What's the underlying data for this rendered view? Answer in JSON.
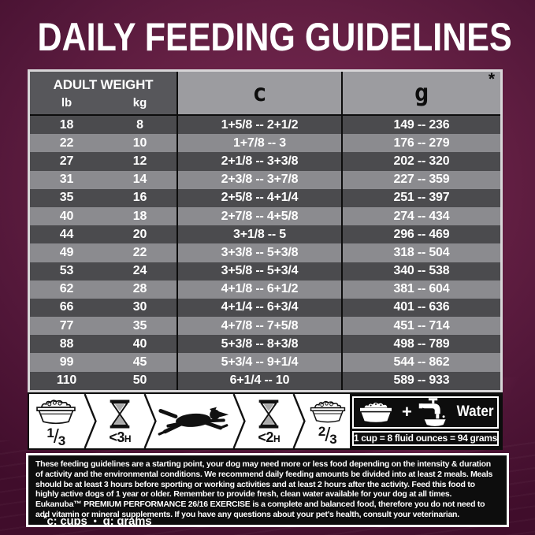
{
  "title": "DAILY FEEDING GUIDELINES",
  "colors": {
    "background": "#5a1a3e",
    "row_dark": "#4b4b4e",
    "row_light": "#8b8b8f",
    "header_dark": "#57575b",
    "header_light": "#9c9ca0",
    "box_background": "#0d0d0d",
    "text_light": "#ffffff"
  },
  "table": {
    "header": {
      "adult_weight": "ADULT WEIGHT",
      "lb": "lb",
      "kg": "kg",
      "cups_abbrev": "c",
      "grams_abbrev": "g",
      "asterisk": "*"
    },
    "rows": [
      {
        "lb": "18",
        "kg": "8",
        "cups": "1+5/8 -- 2+1/2",
        "grams": "149 -- 236"
      },
      {
        "lb": "22",
        "kg": "10",
        "cups": "1+7/8 -- 3",
        "grams": "176 -- 279"
      },
      {
        "lb": "27",
        "kg": "12",
        "cups": "2+1/8 -- 3+3/8",
        "grams": "202 -- 320"
      },
      {
        "lb": "31",
        "kg": "14",
        "cups": "2+3/8 -- 3+7/8",
        "grams": "227 -- 359"
      },
      {
        "lb": "35",
        "kg": "16",
        "cups": "2+5/8 -- 4+1/4",
        "grams": "251 -- 397"
      },
      {
        "lb": "40",
        "kg": "18",
        "cups": "2+7/8 -- 4+5/8",
        "grams": "274 -- 434"
      },
      {
        "lb": "44",
        "kg": "20",
        "cups": "3+1/8 -- 5",
        "grams": "296 -- 469"
      },
      {
        "lb": "49",
        "kg": "22",
        "cups": "3+3/8 -- 5+3/8",
        "grams": "318 -- 504"
      },
      {
        "lb": "53",
        "kg": "24",
        "cups": "3+5/8 -- 5+3/4",
        "grams": "340 -- 538"
      },
      {
        "lb": "62",
        "kg": "28",
        "cups": "4+1/8 -- 6+1/2",
        "grams": "381 -- 604"
      },
      {
        "lb": "66",
        "kg": "30",
        "cups": "4+1/4 -- 6+3/4",
        "grams": "401 -- 636"
      },
      {
        "lb": "77",
        "kg": "35",
        "cups": "4+7/8 -- 7+5/8",
        "grams": "451 -- 714"
      },
      {
        "lb": "88",
        "kg": "40",
        "cups": "5+3/8 -- 8+3/8",
        "grams": "498 -- 789"
      },
      {
        "lb": "99",
        "kg": "45",
        "cups": "5+3/4 -- 9+1/4",
        "grams": "544 -- 862"
      },
      {
        "lb": "110",
        "kg": "50",
        "cups": "6+1/4 -- 10",
        "grams": "589 -- 933"
      }
    ]
  },
  "strip": {
    "icons": [
      "food-bowl-icon",
      "hourglass-icon",
      "running-dog-icon",
      "hourglass-icon",
      "food-bowl-icon"
    ],
    "portion_first": {
      "numerator": "1",
      "denominator": "3"
    },
    "time_before": {
      "value": "<3",
      "unit": "H"
    },
    "time_after": {
      "value": "<2",
      "unit": "H"
    },
    "portion_second": {
      "numerator": "2",
      "denominator": "3"
    }
  },
  "water_box": {
    "icons": [
      "food-bowl-icon",
      "faucet-water-icon"
    ],
    "plus": "+",
    "label": "Water",
    "equivalence": "1 cup = 8 fluid ounces = 94 grams"
  },
  "notes": "These feeding guidelines are a starting point, your dog may need more or less food depending on the intensity & duration of activity and the environmental conditions. We recommend daily feeding amounts be divided into at least 2 meals. Meals should be at least 3 hours before sporting or working activities and at least 2 hours after the activity. Feed this food to highly active dogs of 1 year or older. Remember to provide fresh, clean water available for your dog at all times. Eukanuba™ PREMIUM PERFORMANCE 26/16 EXERCISE is a complete and balanced food, therefore you do not need to add vitamin or mineral supplements. If you have any questions about your pet's health, consult your veterinarian.",
  "footnote": {
    "asterisk": "*",
    "cups_label": "c: cups",
    "separator": "•",
    "grams_label": "g: grams"
  }
}
